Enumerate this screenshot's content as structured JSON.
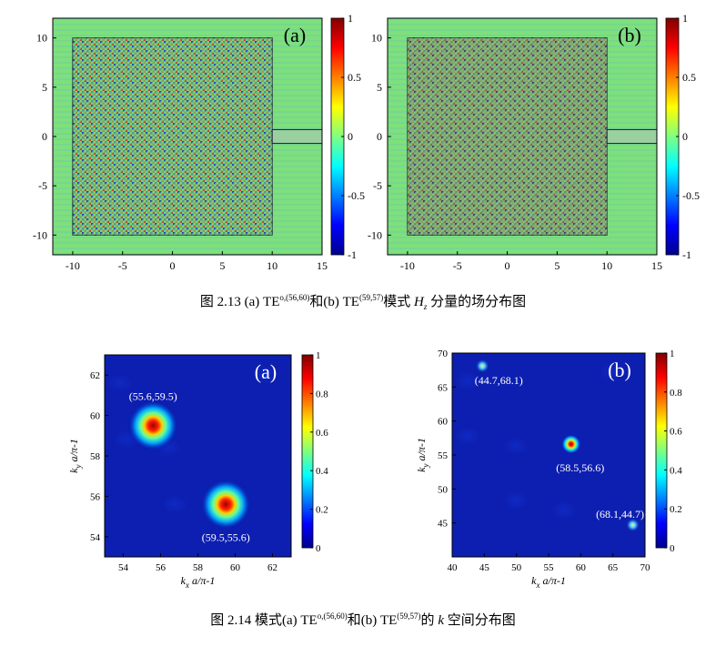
{
  "figure_2_13": {
    "caption": {
      "prefix": "图 2.13 (a) TE",
      "sup_a": "o,(56,60)",
      "mid": "和(b) TE",
      "sup_b": "(59,57)",
      "post": "模式 ",
      "var": "H",
      "sub": "z",
      "suffix": " 分量的场分布图"
    },
    "panels": [
      {
        "label": "(a)",
        "colorbar": {
          "ticks": [
            "1",
            "0.5",
            "0",
            "-0.5",
            "-1"
          ]
        }
      },
      {
        "label": "(b)",
        "colorbar": {
          "ticks": [
            "1",
            "0.5",
            "0",
            "-0.5",
            "-1"
          ]
        }
      }
    ]
  },
  "figure_2_14": {
    "caption": {
      "prefix": "图 2.14 模式(a) TE",
      "sup_a": "o,(56,60)",
      "mid": "和(b) TE",
      "sup_b": "(59,57)",
      "post": "的 ",
      "var": "k",
      "suffix": " 空间分布图"
    },
    "panels": [
      {
        "label": "(a)",
        "xlabel": "k",
        "xlabel_rest": "a/π-1",
        "xlabel_sub": "x",
        "ylabel": "k",
        "ylabel_rest": "a/π-1",
        "ylabel_sub": "y",
        "annotations": [
          "(55.6,59.5)",
          "(59.5,55.6)"
        ],
        "colorbar": {
          "ticks": [
            "1",
            "0.8",
            "0.6",
            "0.4",
            "0.2",
            "0"
          ]
        }
      },
      {
        "label": "(b)",
        "xlabel": "k",
        "xlabel_rest": "a/π-1",
        "xlabel_sub": "x",
        "ylabel": "k",
        "ylabel_rest": "a/π-1",
        "ylabel_sub": "y",
        "annotations": [
          "(44.7,68.1)",
          "(58.5,56.6)",
          "(68.1,44.7)"
        ],
        "colorbar": {
          "ticks": [
            "1",
            "0.8",
            "0.6",
            "0.4",
            "0.2",
            "0"
          ]
        }
      }
    ]
  },
  "chart_data": [
    {
      "type": "heatmap",
      "panel": "2.13(a)",
      "xlim": [
        -12,
        15
      ],
      "ylim": [
        -12,
        12
      ],
      "xticks": [
        -10,
        -5,
        0,
        5,
        10,
        15
      ],
      "yticks": [
        10,
        5,
        0,
        -5,
        -10
      ],
      "clim": [
        -1,
        1
      ],
      "cavity": {
        "x": [
          -10,
          10
        ],
        "y": [
          -10,
          10
        ]
      },
      "waveguide": {
        "x": [
          10,
          15
        ],
        "y": [
          -0.7,
          0.7
        ]
      }
    },
    {
      "type": "heatmap",
      "panel": "2.13(b)",
      "xlim": [
        -12,
        15
      ],
      "ylim": [
        -12,
        12
      ],
      "xticks": [
        -10,
        -5,
        0,
        5,
        10,
        15
      ],
      "yticks": [
        10,
        5,
        0,
        -5,
        -10
      ],
      "clim": [
        -1,
        1
      ],
      "cavity": {
        "x": [
          -10,
          10
        ],
        "y": [
          -10,
          10
        ]
      },
      "waveguide": {
        "x": [
          10,
          15
        ],
        "y": [
          -0.7,
          0.7
        ]
      }
    },
    {
      "type": "heatmap",
      "panel": "2.14(a)",
      "xlim": [
        53,
        63
      ],
      "ylim": [
        53,
        63
      ],
      "xticks": [
        54,
        56,
        58,
        60,
        62
      ],
      "yticks": [
        62,
        60,
        58,
        56,
        54
      ],
      "clim": [
        0,
        1
      ],
      "peaks": [
        {
          "x": 55.6,
          "y": 59.5,
          "v": 1.0
        },
        {
          "x": 59.5,
          "y": 55.6,
          "v": 1.0
        }
      ]
    },
    {
      "type": "heatmap",
      "panel": "2.14(b)",
      "xlim": [
        40,
        70
      ],
      "ylim": [
        40,
        70
      ],
      "xticks": [
        40,
        45,
        50,
        55,
        60,
        65,
        70
      ],
      "yticks": [
        70,
        65,
        60,
        55,
        50,
        45
      ],
      "clim": [
        0,
        1
      ],
      "peaks": [
        {
          "x": 44.7,
          "y": 68.1,
          "v": 0.35
        },
        {
          "x": 58.5,
          "y": 56.6,
          "v": 1.0
        },
        {
          "x": 68.1,
          "y": 44.7,
          "v": 0.35
        }
      ]
    }
  ]
}
